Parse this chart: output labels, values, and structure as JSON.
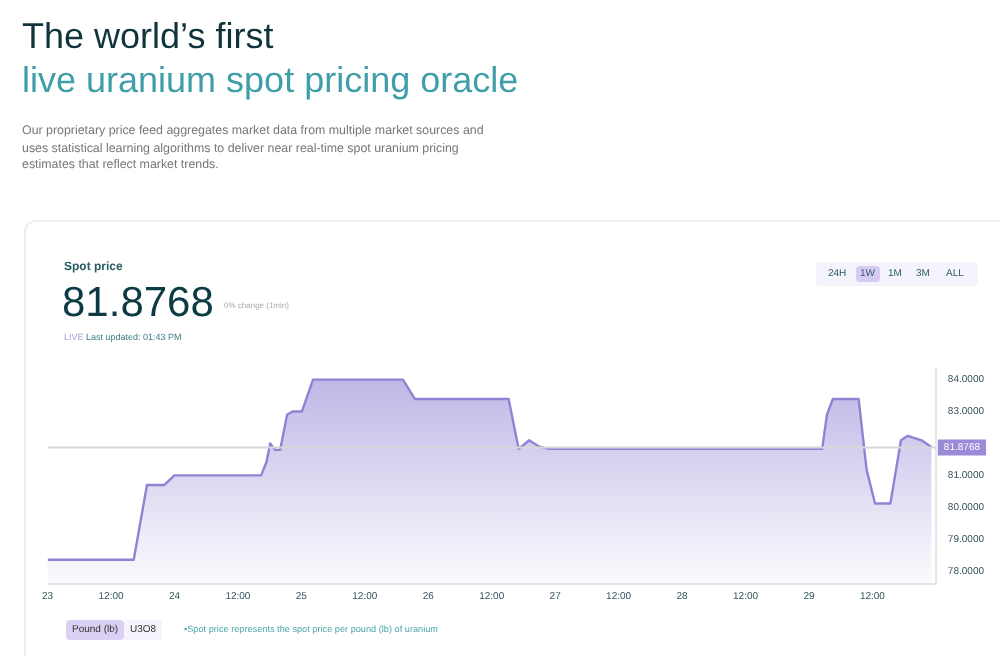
{
  "chart_data": {
    "type": "area",
    "title": "The world’s first",
    "subtitle": "live uranium spot pricing oracle",
    "annotations": [
      "Our proprietary price feed aggregates market data from multiple market sources and uses statistical learning algorithms to deliver near real-time spot uranium pricing estimates that reflect market trends.",
      "Spot price",
      "81.8768",
      "0% change (1min)",
      "LIVE",
      "Last updated: 01:43 PM",
      "24H",
      "1W",
      "1M",
      "3M",
      "ALL",
      "Pound (lb)",
      "U3O8",
      "•Spot price represents the spot price per pound (lb) of uranium"
    ],
    "series": [
      {
        "color": "#9282d4",
        "x": [
          "--11-23T00:00",
          "--11-23T16:18",
          "--11-23T18:48",
          "--11-23T22:06",
          "--11-24T00:00",
          "--11-24T16:24",
          "--11-24T17:24",
          "--11-24T18:06",
          "--11-24T19:00",
          "--11-24T20:00",
          "--11-24T21:18",
          "--11-24T22:18",
          "--11-25T00:06",
          "--11-25T02:12",
          "--11-25T19:12",
          "--11-25T21:30",
          "--11-26T15:12",
          "--11-26T17:06",
          "--11-26T19:06",
          "--11-26T21:00",
          "--11-26T22:54",
          "--11-29T02:30",
          "--11-29T03:24",
          "--11-29T04:30",
          "--11-29T09:24",
          "--11-29T10:54",
          "--11-29T12:30",
          "--11-29T15:24",
          "--11-29T17:24",
          "--11-29T18:42",
          "--11-29T21:18",
          "--11-29T23:12"
        ],
        "values": [
          78.36,
          78.36,
          80.7,
          80.7,
          81.0,
          81.0,
          81.42,
          82.0,
          81.8,
          81.8,
          82.9,
          83.0,
          83.0,
          84.0,
          84.0,
          83.39,
          83.39,
          81.83,
          82.1,
          81.9,
          81.83,
          81.83,
          82.9,
          83.39,
          83.39,
          81.18,
          80.12,
          80.12,
          82.1,
          82.24,
          82.1,
          81.88
        ]
      }
    ],
    "xlim": [
      "--11-23",
      "--11-30"
    ],
    "xticks": [
      {
        "value": "--11-23",
        "label": "23"
      },
      {
        "value": "--11-23T12:00",
        "label": "12:00"
      },
      {
        "value": "--11-24",
        "label": "24"
      },
      {
        "value": "--11-24T12:00",
        "label": "12:00"
      },
      {
        "value": "--11-25",
        "label": "25"
      },
      {
        "value": "--11-25T12:00",
        "label": "12:00"
      },
      {
        "value": "--11-26",
        "label": "26"
      },
      {
        "value": "--11-26T12:00",
        "label": "12:00"
      },
      {
        "value": "--11-27",
        "label": "27"
      },
      {
        "value": "--11-27T12:00",
        "label": "12:00"
      },
      {
        "value": "--11-28",
        "label": "28"
      },
      {
        "value": "--11-28T12:00",
        "label": "12:00"
      },
      {
        "value": "--11-29",
        "label": "29"
      },
      {
        "value": "--11-29T12:00",
        "label": "12:00"
      }
    ],
    "ylim": [
      77.6,
      84.3
    ],
    "yticks": [
      {
        "value": 78,
        "label": "78.0000"
      },
      {
        "value": 79,
        "label": "79.0000"
      },
      {
        "value": 80,
        "label": "80.0000"
      },
      {
        "value": 81,
        "label": "81.0000"
      },
      {
        "value": 83,
        "label": "83.0000"
      },
      {
        "value": 84,
        "label": "84.0000"
      }
    ],
    "ref_lines": [
      {
        "axis": "y",
        "value": 81.8768,
        "label": "81.8768"
      }
    ],
    "marker": "none",
    "line_style": "solid",
    "legend": false,
    "grid": false
  }
}
